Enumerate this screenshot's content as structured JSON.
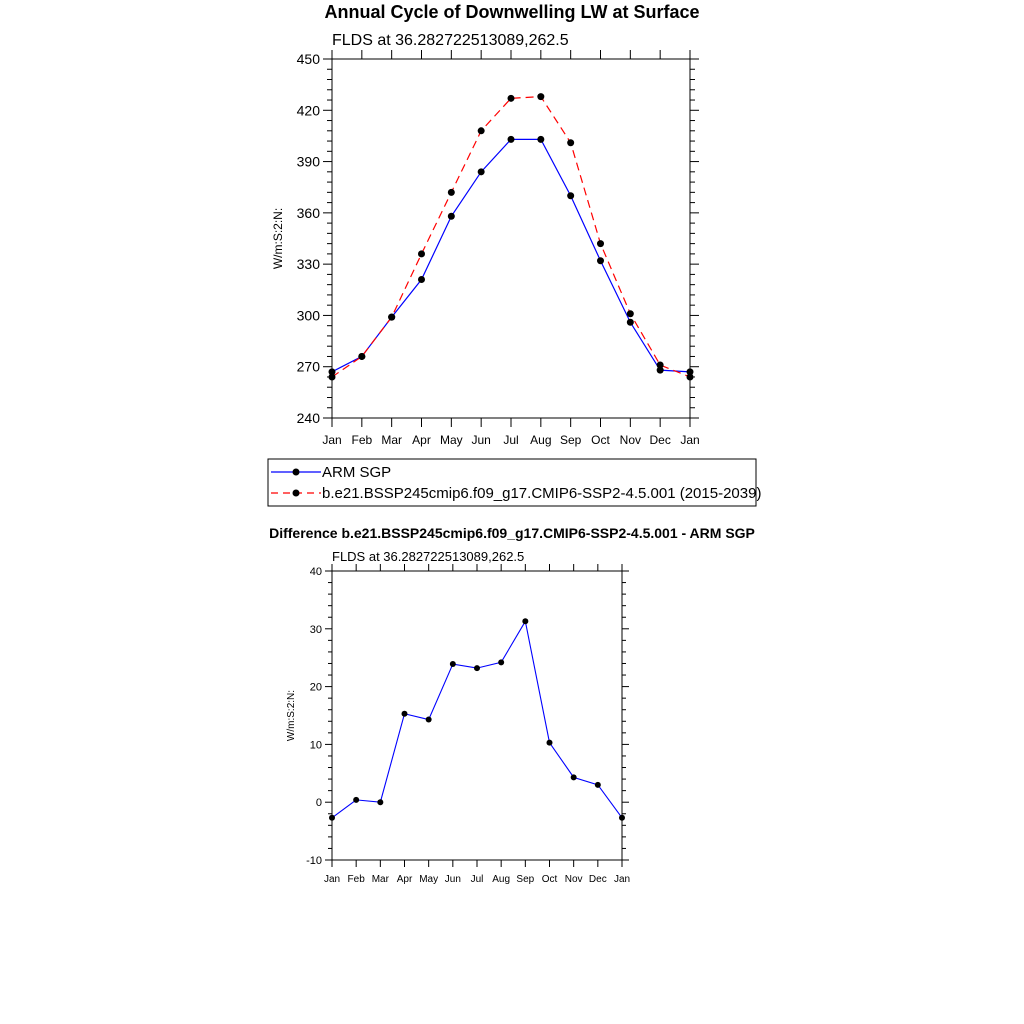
{
  "chart_data": [
    {
      "type": "line",
      "title": "Annual Cycle of Downwelling LW at Surface",
      "subtitle": "FLDS at 36.282722513089,262.5",
      "xlabel": "",
      "ylabel": "W/m:S:2:N:",
      "categories": [
        "Jan",
        "Feb",
        "Mar",
        "Apr",
        "May",
        "Jun",
        "Jul",
        "Aug",
        "Sep",
        "Oct",
        "Nov",
        "Dec",
        "Jan"
      ],
      "ylim": [
        240,
        450
      ],
      "yticks": [
        "240",
        "270",
        "300",
        "330",
        "360",
        "390",
        "420",
        "450"
      ],
      "series": [
        {
          "name": "ARM SGP",
          "color": "#0000ff",
          "dash": "solid",
          "values": [
            267,
            276,
            299,
            321,
            358,
            384,
            403,
            403,
            370,
            332,
            296,
            268,
            267
          ]
        },
        {
          "name": "b.e21.BSSP245cmip6.f09_g17.CMIP6-SSP2-4.5.001 (2015-2039)",
          "color": "#ff0000",
          "dash": "dashed",
          "values": [
            264,
            276,
            299,
            336,
            372,
            408,
            427,
            428,
            401,
            342,
            301,
            271,
            264
          ]
        }
      ],
      "legend": "below"
    },
    {
      "type": "line",
      "title": "Difference b.e21.BSSP245cmip6.f09_g17.CMIP6-SSP2-4.5.001 - ARM SGP",
      "subtitle": "FLDS at 36.282722513089,262.5",
      "xlabel": "",
      "ylabel": "W/m:S:2:N:",
      "categories": [
        "Jan",
        "Feb",
        "Mar",
        "Apr",
        "May",
        "Jun",
        "Jul",
        "Aug",
        "Sep",
        "Oct",
        "Nov",
        "Dec",
        "Jan"
      ],
      "ylim": [
        -10,
        40
      ],
      "yticks": [
        "-10",
        "0",
        "10",
        "20",
        "30",
        "40"
      ],
      "series": [
        {
          "name": "Difference",
          "color": "#0000ff",
          "dash": "solid",
          "values": [
            -2.7,
            0.4,
            0.0,
            15.3,
            14.3,
            23.9,
            23.2,
            24.2,
            31.3,
            10.3,
            4.3,
            3.0,
            -2.7
          ]
        }
      ]
    }
  ]
}
